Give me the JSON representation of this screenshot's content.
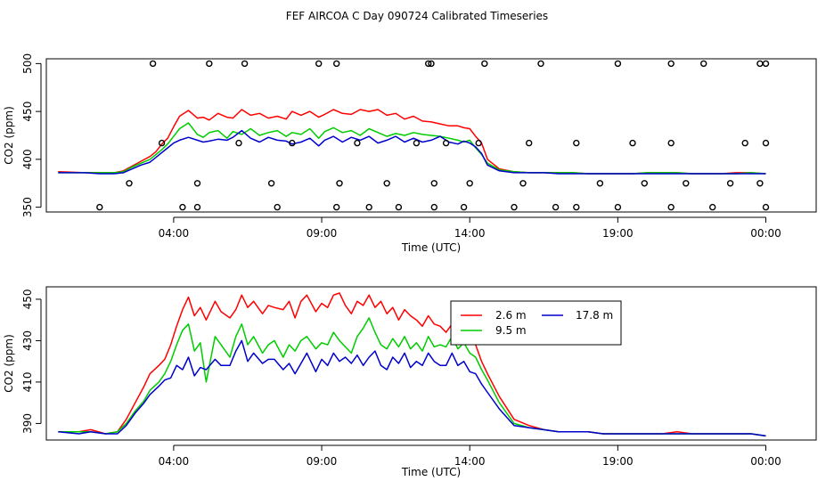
{
  "chart_data": [
    {
      "type": "line",
      "title": "FEF AIRCOA C  Day 090724  Calibrated Timeseries",
      "xlabel": "Time (UTC)",
      "ylabel": "CO2 (ppm)",
      "xlim": [
        -1.3,
        24.7
      ],
      "ylim": [
        345,
        505
      ],
      "xticks": [
        3,
        8,
        13,
        18,
        23
      ],
      "xtick_labels": [
        "04:00",
        "09:00",
        "14:00",
        "19:00",
        "00:00"
      ],
      "yticks": [
        350,
        400,
        450,
        500
      ],
      "ytick_labels": [
        "350",
        "400",
        "450",
        "500"
      ],
      "grid": false,
      "series": [
        {
          "name": "2.6 m",
          "color": "#ff0000",
          "x": [
            -0.9,
            0,
            0.5,
            1,
            1.3,
            1.6,
            1.9,
            2.2,
            2.4,
            2.6,
            2.8,
            3,
            3.2,
            3.5,
            3.8,
            4,
            4.2,
            4.5,
            4.8,
            5,
            5.3,
            5.6,
            5.9,
            6.2,
            6.5,
            6.8,
            7,
            7.3,
            7.6,
            7.9,
            8.1,
            8.4,
            8.7,
            9,
            9.3,
            9.6,
            9.9,
            10.2,
            10.5,
            10.8,
            11.1,
            11.4,
            11.7,
            12,
            12.3,
            12.6,
            12.8,
            13,
            13.2,
            13.4,
            13.6,
            14,
            14.5,
            15,
            15.5,
            16,
            16.5,
            17,
            17.5,
            18,
            18.5,
            19,
            19.5,
            20,
            20.5,
            21,
            21.5,
            22,
            22.5,
            23
          ],
          "values": [
            387,
            386,
            386,
            386,
            388,
            393,
            398,
            403,
            408,
            416,
            422,
            434,
            445,
            451,
            443,
            444,
            441,
            448,
            444,
            443,
            452,
            446,
            448,
            443,
            445,
            442,
            450,
            446,
            450,
            444,
            447,
            452,
            448,
            447,
            452,
            450,
            452,
            446,
            448,
            442,
            445,
            440,
            439,
            437,
            435,
            435,
            433,
            432,
            424,
            417,
            400,
            390,
            387,
            386,
            386,
            386,
            386,
            385,
            385,
            385,
            385,
            386,
            386,
            386,
            385,
            385,
            385,
            386,
            386,
            385
          ]
        },
        {
          "name": "9.5 m",
          "color": "#00cc00",
          "x": [
            -0.9,
            0,
            0.5,
            1,
            1.3,
            1.6,
            1.9,
            2.2,
            2.4,
            2.6,
            2.8,
            3,
            3.2,
            3.5,
            3.8,
            4,
            4.2,
            4.5,
            4.8,
            5,
            5.3,
            5.6,
            5.9,
            6.2,
            6.5,
            6.8,
            7,
            7.3,
            7.6,
            7.9,
            8.1,
            8.4,
            8.7,
            9,
            9.3,
            9.6,
            9.9,
            10.2,
            10.5,
            10.8,
            11.1,
            11.4,
            11.7,
            12,
            12.3,
            12.6,
            12.8,
            13,
            13.2,
            13.4,
            13.6,
            14,
            14.5,
            15,
            15.5,
            16,
            16.5,
            17,
            17.5,
            18,
            18.5,
            19,
            19.5,
            20,
            20.5,
            21,
            21.5,
            22,
            22.5,
            23
          ],
          "values": [
            386,
            386,
            386,
            386,
            387,
            392,
            396,
            400,
            405,
            410,
            416,
            424,
            432,
            438,
            426,
            423,
            428,
            430,
            422,
            429,
            426,
            432,
            425,
            428,
            430,
            424,
            428,
            426,
            432,
            422,
            429,
            433,
            428,
            430,
            425,
            432,
            428,
            424,
            427,
            425,
            428,
            426,
            425,
            424,
            422,
            420,
            418,
            420,
            412,
            405,
            396,
            389,
            387,
            386,
            386,
            386,
            386,
            385,
            385,
            385,
            385,
            386,
            386,
            386,
            385,
            385,
            385,
            385,
            386,
            385
          ]
        },
        {
          "name": "17.8 m",
          "color": "#0000cc",
          "x": [
            -0.9,
            0,
            0.5,
            1,
            1.3,
            1.6,
            1.9,
            2.2,
            2.4,
            2.6,
            2.8,
            3,
            3.2,
            3.5,
            3.8,
            4,
            4.2,
            4.5,
            4.8,
            5,
            5.3,
            5.6,
            5.9,
            6.2,
            6.5,
            6.8,
            7,
            7.3,
            7.6,
            7.9,
            8.1,
            8.4,
            8.7,
            9,
            9.3,
            9.6,
            9.9,
            10.2,
            10.5,
            10.8,
            11.1,
            11.4,
            11.7,
            12,
            12.3,
            12.6,
            12.8,
            13,
            13.2,
            13.4,
            13.6,
            14,
            14.5,
            15,
            15.5,
            16,
            16.5,
            17,
            17.5,
            18,
            18.5,
            19,
            19.5,
            20,
            20.5,
            21,
            21.5,
            22,
            22.5,
            23
          ],
          "values": [
            386,
            386,
            385,
            385,
            386,
            390,
            394,
            397,
            402,
            407,
            412,
            417,
            420,
            423,
            420,
            418,
            419,
            421,
            420,
            423,
            430,
            422,
            418,
            423,
            420,
            419,
            416,
            418,
            422,
            414,
            420,
            424,
            418,
            423,
            420,
            424,
            417,
            420,
            424,
            418,
            422,
            418,
            420,
            424,
            418,
            416,
            419,
            417,
            413,
            406,
            394,
            388,
            386,
            386,
            386,
            385,
            385,
            385,
            385,
            385,
            385,
            385,
            385,
            385,
            385,
            385,
            385,
            385,
            385,
            385
          ]
        }
      ],
      "markers": {
        "shape": "open-circle",
        "x": [
          0.5,
          1.5,
          2.3,
          2.6,
          3.3,
          3.8,
          3.8,
          4.2,
          5.2,
          5.4,
          6.5,
          6.3,
          7.0,
          7.9,
          8.5,
          8.6,
          8.5,
          9.2,
          9.6,
          10.2,
          10.6,
          11.6,
          11.2,
          11.8,
          11.8,
          11.7,
          12.2,
          12.8,
          13.0,
          13.3,
          13.5,
          14.5,
          14.8,
          15.0,
          15.4,
          15.9,
          16.6,
          16.6,
          17.4,
          18.0,
          18.0,
          18.5,
          18.9,
          19.8,
          19.8,
          19.8,
          20.3,
          20.9,
          21.2,
          21.8,
          22.3,
          22.8,
          22.8,
          23.0,
          23.0,
          23.0
        ],
        "values": [
          350,
          375,
          500,
          417,
          350,
          375,
          350,
          500,
          417,
          500,
          350,
          375,
          417,
          500,
          350,
          375,
          500,
          417,
          350,
          375,
          350,
          500,
          417,
          350,
          375,
          500,
          417,
          350,
          375,
          417,
          500,
          350,
          375,
          417,
          500,
          350,
          350,
          417,
          375,
          500,
          350,
          417,
          375,
          500,
          417,
          350,
          375,
          500,
          350,
          375,
          417,
          500,
          375,
          350,
          500,
          417
        ]
      }
    },
    {
      "type": "line",
      "title": "",
      "xlabel": "Time (UTC)",
      "ylabel": "CO2 (ppm)",
      "xlim": [
        -1.3,
        24.7
      ],
      "ylim": [
        382,
        456
      ],
      "xticks": [
        3,
        8,
        13,
        18,
        23
      ],
      "xtick_labels": [
        "04:00",
        "09:00",
        "14:00",
        "19:00",
        "00:00"
      ],
      "yticks": [
        390,
        410,
        430,
        450
      ],
      "ytick_labels": [
        "390",
        "410",
        "430",
        "450"
      ],
      "grid": false,
      "legend": {
        "placement": "top-center",
        "entries": [
          "2.6 m",
          "9.5 m",
          "17.8 m"
        ]
      },
      "series": [
        {
          "name": "2.6 m",
          "color": "#ff0000",
          "x": [
            -0.9,
            -0.2,
            0.2,
            0.7,
            1.1,
            1.4,
            1.7,
            2.0,
            2.2,
            2.5,
            2.7,
            2.9,
            3.1,
            3.3,
            3.5,
            3.7,
            3.9,
            4.1,
            4.4,
            4.6,
            4.9,
            5.1,
            5.3,
            5.5,
            5.7,
            6.0,
            6.2,
            6.4,
            6.7,
            6.9,
            7.1,
            7.3,
            7.5,
            7.8,
            8.0,
            8.2,
            8.4,
            8.6,
            8.8,
            9.0,
            9.2,
            9.4,
            9.6,
            9.8,
            10.0,
            10.2,
            10.4,
            10.6,
            10.8,
            11.0,
            11.2,
            11.4,
            11.6,
            11.8,
            12.0,
            12.2,
            12.4,
            12.6,
            12.8,
            13.0,
            13.2,
            13.4,
            13.6,
            14.0,
            14.5,
            15,
            15.5,
            16,
            16.5,
            17,
            17.5,
            18,
            18.5,
            19,
            19.5,
            20,
            20.5,
            21,
            21.5,
            22,
            22.5,
            23
          ],
          "values": [
            386,
            386,
            387,
            385,
            386,
            392,
            400,
            408,
            414,
            418,
            421,
            428,
            437,
            445,
            451,
            442,
            446,
            440,
            449,
            444,
            441,
            445,
            452,
            446,
            449,
            443,
            447,
            446,
            445,
            449,
            441,
            449,
            452,
            444,
            448,
            446,
            452,
            453,
            447,
            443,
            449,
            447,
            452,
            446,
            449,
            443,
            446,
            440,
            445,
            442,
            440,
            437,
            442,
            438,
            437,
            434,
            438,
            435,
            436,
            432,
            428,
            420,
            414,
            403,
            392,
            389,
            387,
            386,
            386,
            386,
            385,
            385,
            385,
            385,
            385,
            386,
            385,
            385,
            385,
            385,
            385,
            384
          ]
        },
        {
          "name": "9.5 m",
          "color": "#00cc00",
          "x": [
            -0.9,
            -0.2,
            0.2,
            0.7,
            1.1,
            1.4,
            1.7,
            2.0,
            2.2,
            2.5,
            2.7,
            2.9,
            3.1,
            3.3,
            3.5,
            3.7,
            3.9,
            4.1,
            4.4,
            4.6,
            4.9,
            5.1,
            5.3,
            5.5,
            5.7,
            6.0,
            6.2,
            6.4,
            6.7,
            6.9,
            7.1,
            7.3,
            7.5,
            7.8,
            8.0,
            8.2,
            8.4,
            8.6,
            8.8,
            9.0,
            9.2,
            9.4,
            9.6,
            9.8,
            10.0,
            10.2,
            10.4,
            10.6,
            10.8,
            11.0,
            11.2,
            11.4,
            11.6,
            11.8,
            12.0,
            12.2,
            12.4,
            12.6,
            12.8,
            13.0,
            13.2,
            13.4,
            13.6,
            14.0,
            14.5,
            15,
            15.5,
            16,
            16.5,
            17,
            17.5,
            18,
            18.5,
            19,
            19.5,
            20,
            20.5,
            21,
            21.5,
            22,
            22.5,
            23
          ],
          "values": [
            386,
            386,
            386,
            385,
            386,
            390,
            396,
            401,
            406,
            410,
            414,
            420,
            428,
            435,
            438,
            425,
            429,
            410,
            432,
            428,
            422,
            432,
            438,
            428,
            432,
            424,
            428,
            430,
            422,
            428,
            425,
            430,
            432,
            426,
            429,
            428,
            434,
            430,
            427,
            424,
            432,
            436,
            441,
            434,
            428,
            426,
            431,
            427,
            432,
            426,
            429,
            425,
            432,
            427,
            428,
            427,
            432,
            426,
            429,
            424,
            422,
            416,
            411,
            400,
            390,
            388,
            387,
            386,
            386,
            386,
            385,
            385,
            385,
            385,
            385,
            385,
            385,
            385,
            385,
            385,
            385,
            384
          ]
        },
        {
          "name": "17.8 m",
          "color": "#0000cc",
          "x": [
            -0.9,
            -0.2,
            0.2,
            0.7,
            1.1,
            1.4,
            1.7,
            2.0,
            2.2,
            2.5,
            2.7,
            2.9,
            3.1,
            3.3,
            3.5,
            3.7,
            3.9,
            4.1,
            4.4,
            4.6,
            4.9,
            5.1,
            5.3,
            5.5,
            5.7,
            6.0,
            6.2,
            6.4,
            6.7,
            6.9,
            7.1,
            7.3,
            7.5,
            7.8,
            8.0,
            8.2,
            8.4,
            8.6,
            8.8,
            9.0,
            9.2,
            9.4,
            9.6,
            9.8,
            10.0,
            10.2,
            10.4,
            10.6,
            10.8,
            11.0,
            11.2,
            11.4,
            11.6,
            11.8,
            12.0,
            12.2,
            12.4,
            12.6,
            12.8,
            13.0,
            13.2,
            13.4,
            13.6,
            14.0,
            14.5,
            15,
            15.5,
            16,
            16.5,
            17,
            17.5,
            18,
            18.5,
            19,
            19.5,
            20,
            20.5,
            21,
            21.5,
            22,
            22.5,
            23
          ],
          "values": [
            386,
            385,
            386,
            385,
            385,
            389,
            395,
            400,
            404,
            408,
            411,
            412,
            418,
            416,
            422,
            413,
            417,
            416,
            421,
            418,
            418,
            425,
            430,
            420,
            424,
            419,
            421,
            421,
            416,
            419,
            414,
            419,
            424,
            415,
            421,
            418,
            424,
            420,
            422,
            419,
            423,
            418,
            422,
            425,
            418,
            416,
            422,
            419,
            424,
            417,
            420,
            418,
            424,
            420,
            418,
            418,
            424,
            418,
            420,
            415,
            414,
            409,
            405,
            397,
            389,
            388,
            387,
            386,
            386,
            386,
            385,
            385,
            385,
            385,
            385,
            385,
            385,
            385,
            385,
            385,
            385,
            384
          ]
        }
      ]
    }
  ]
}
